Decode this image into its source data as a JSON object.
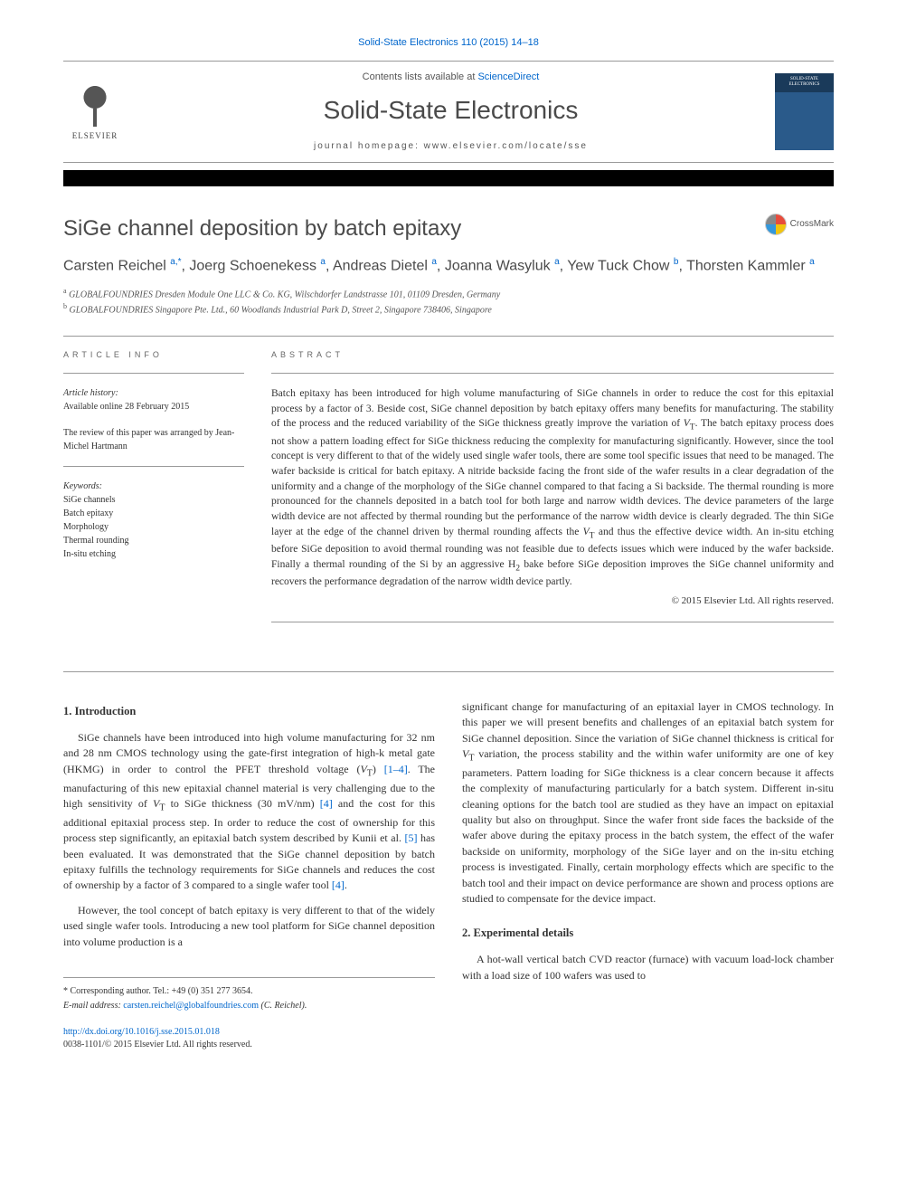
{
  "header": {
    "top_link_text": "Solid-State Electronics 110 (2015) 14–18",
    "contents_prefix": "Contents lists available at ",
    "contents_link": "ScienceDirect",
    "journal_title": "Solid-State Electronics",
    "homepage_prefix": "journal homepage: ",
    "homepage_url": "www.elsevier.com/locate/sse",
    "elsevier_label": "ELSEVIER",
    "cover_label": "SOLID-STATE ELECTRONICS",
    "crossmark_label": "CrossMark"
  },
  "article": {
    "title": "SiGe channel deposition by batch epitaxy",
    "authors_html": "Carsten Reichel <sup>a,*</sup>, Joerg Schoenekess <sup>a</sup>, Andreas Dietel <sup>a</sup>, Joanna Wasyluk <sup>a</sup>, Yew Tuck Chow <sup>b</sup>, Thorsten Kammler <sup>a</sup>",
    "affiliations": [
      {
        "sup": "a",
        "text": "GLOBALFOUNDRIES Dresden Module One LLC & Co. KG, Wilschdorfer Landstrasse 101, 01109 Dresden, Germany"
      },
      {
        "sup": "b",
        "text": "GLOBALFOUNDRIES Singapore Pte. Ltd., 60 Woodlands Industrial Park D, Street 2, Singapore 738406, Singapore"
      }
    ]
  },
  "info": {
    "heading": "ARTICLE INFO",
    "history_label": "Article history:",
    "history_value": "Available online 28 February 2015",
    "review_text": "The review of this paper was arranged by Jean-Michel Hartmann",
    "keywords_label": "Keywords:",
    "keywords": [
      "SiGe channels",
      "Batch epitaxy",
      "Morphology",
      "Thermal rounding",
      "In-situ etching"
    ]
  },
  "abstract": {
    "heading": "ABSTRACT",
    "text": "Batch epitaxy has been introduced for high volume manufacturing of SiGe channels in order to reduce the cost for this epitaxial process by a factor of 3. Beside cost, SiGe channel deposition by batch epitaxy offers many benefits for manufacturing. The stability of the process and the reduced variability of the SiGe thickness greatly improve the variation of VT. The batch epitaxy process does not show a pattern loading effect for SiGe thickness reducing the complexity for manufacturing significantly. However, since the tool concept is very different to that of the widely used single wafer tools, there are some tool specific issues that need to be managed. The wafer backside is critical for batch epitaxy. A nitride backside facing the front side of the wafer results in a clear degradation of the uniformity and a change of the morphology of the SiGe channel compared to that facing a Si backside. The thermal rounding is more pronounced for the channels deposited in a batch tool for both large and narrow width devices. The device parameters of the large width device are not affected by thermal rounding but the performance of the narrow width device is clearly degraded. The thin SiGe layer at the edge of the channel driven by thermal rounding affects the VT and thus the effective device width. An in-situ etching before SiGe deposition to avoid thermal rounding was not feasible due to defects issues which were induced by the wafer backside. Finally a thermal rounding of the Si by an aggressive H2 bake before SiGe deposition improves the SiGe channel uniformity and recovers the performance degradation of the narrow width device partly.",
    "copyright": "© 2015 Elsevier Ltd. All rights reserved."
  },
  "body": {
    "section1_heading": "1. Introduction",
    "p1": "SiGe channels have been introduced into high volume manufacturing for 32 nm and 28 nm CMOS technology using the gate-first integration of high-k metal gate (HKMG) in order to control the PFET threshold voltage (VT) [1–4]. The manufacturing of this new epitaxial channel material is very challenging due to the high sensitivity of VT to SiGe thickness (30 mV/nm) [4] and the cost for this additional epitaxial process step. In order to reduce the cost of ownership for this process step significantly, an epitaxial batch system described by Kunii et al. [5] has been evaluated. It was demonstrated that the SiGe channel deposition by batch epitaxy fulfills the technology requirements for SiGe channels and reduces the cost of ownership by a factor of 3 compared to a single wafer tool [4].",
    "p2": "However, the tool concept of batch epitaxy is very different to that of the widely used single wafer tools. Introducing a new tool platform for SiGe channel deposition into volume production is a",
    "p3": "significant change for manufacturing of an epitaxial layer in CMOS technology. In this paper we will present benefits and challenges of an epitaxial batch system for SiGe channel deposition. Since the variation of SiGe channel thickness is critical for VT variation, the process stability and the within wafer uniformity are one of key parameters. Pattern loading for SiGe thickness is a clear concern because it affects the complexity of manufacturing particularly for a batch system. Different in-situ cleaning options for the batch tool are studied as they have an impact on epitaxial quality but also on throughput. Since the wafer front side faces the backside of the wafer above during the epitaxy process in the batch system, the effect of the wafer backside on uniformity, morphology of the SiGe layer and on the in-situ etching process is investigated. Finally, certain morphology effects which are specific to the batch tool and their impact on device performance are shown and process options are studied to compensate for the device impact.",
    "section2_heading": "2. Experimental details",
    "p4": "A hot-wall vertical batch CVD reactor (furnace) with vacuum load-lock chamber with a load size of 100 wafers was used to"
  },
  "footer": {
    "corresponding": "* Corresponding author. Tel.: +49 (0) 351 277 3654.",
    "email_label": "E-mail address: ",
    "email": "carsten.reichel@globalfoundries.com",
    "email_suffix": " (C. Reichel).",
    "doi": "http://dx.doi.org/10.1016/j.sse.2015.01.018",
    "issn": "0038-1101/© 2015 Elsevier Ltd. All rights reserved."
  },
  "colors": {
    "link": "#0066cc",
    "heading": "#4a4a4a",
    "text": "#333333",
    "muted": "#555555",
    "border": "#999999"
  }
}
